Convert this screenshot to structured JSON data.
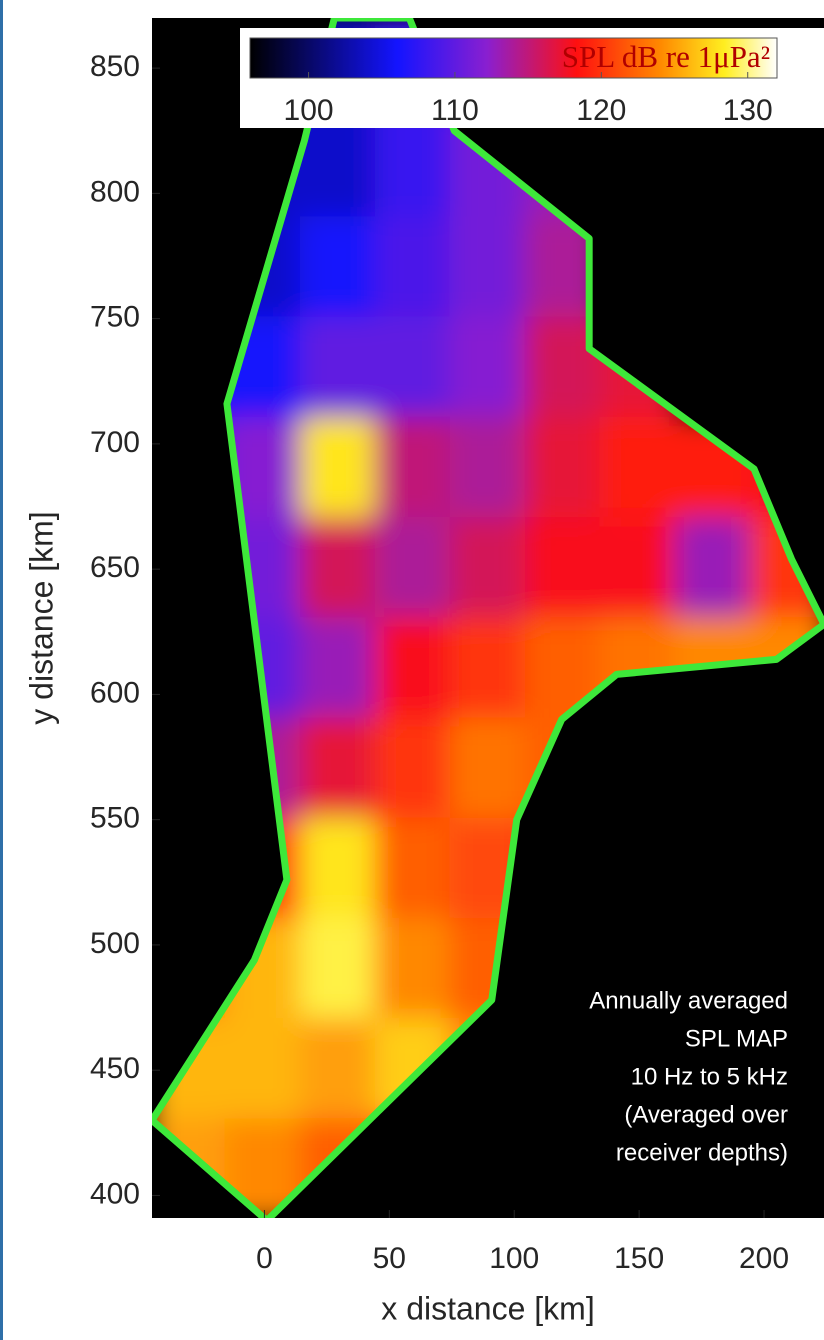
{
  "chart_data": {
    "type": "heatmap",
    "xlabel": "x distance [km]",
    "ylabel": "y distance [km]",
    "xlim": [
      -45,
      224
    ],
    "ylim": [
      391,
      870
    ],
    "xticks": [
      0,
      50,
      100,
      150,
      200
    ],
    "yticks": [
      400,
      450,
      500,
      550,
      600,
      650,
      700,
      750,
      800,
      850
    ],
    "x": [
      -30,
      0,
      30,
      60,
      90,
      120,
      150,
      180,
      210
    ],
    "y": [
      850,
      810,
      770,
      730,
      690,
      650,
      610,
      570,
      530,
      490,
      450,
      410
    ],
    "values": [
      [
        null,
        103,
        104,
        108,
        110,
        null,
        null,
        null,
        null
      ],
      [
        null,
        104,
        104,
        108,
        111,
        113,
        null,
        null,
        null
      ],
      [
        105,
        104,
        106,
        109,
        111,
        114,
        null,
        null,
        null
      ],
      [
        106,
        106,
        110,
        110,
        112,
        116,
        117,
        null,
        null
      ],
      [
        110,
        112,
        128,
        115,
        114,
        117,
        119,
        119,
        118
      ],
      [
        110,
        111,
        116,
        114,
        116,
        118,
        118,
        113,
        120
      ],
      [
        110,
        110,
        113,
        118,
        120,
        122,
        123,
        124,
        124
      ],
      [
        112,
        114,
        117,
        120,
        123,
        122,
        null,
        null,
        null
      ],
      [
        118,
        120,
        128,
        122,
        121,
        120,
        null,
        null,
        null
      ],
      [
        124,
        126,
        129,
        124,
        122,
        120,
        null,
        null,
        null
      ],
      [
        126,
        126,
        125,
        127,
        124,
        null,
        null,
        null,
        null
      ],
      [
        125,
        124,
        122,
        120,
        118,
        null,
        null,
        null,
        null
      ]
    ],
    "clim": [
      96,
      132
    ],
    "colorbar_ticks": [
      100,
      110,
      120,
      130
    ],
    "colorbar_label": "SPL dB re 1μPa²",
    "boundary": {
      "color": "#3ee83a",
      "x": [
        28,
        16,
        -15,
        9,
        -4,
        -45,
        1,
        91,
        101,
        119,
        141,
        205,
        224,
        211,
        196,
        130,
        130,
        76,
        58
      ],
      "y": [
        870,
        821,
        716,
        526,
        494,
        430,
        390,
        478,
        550,
        590,
        608,
        614,
        628,
        654,
        690,
        738,
        782,
        825,
        870
      ]
    },
    "annotation": [
      "Annually averaged",
      "SPL MAP",
      "10 Hz to 5 kHz",
      "(Averaged over",
      "receiver depths)"
    ]
  }
}
